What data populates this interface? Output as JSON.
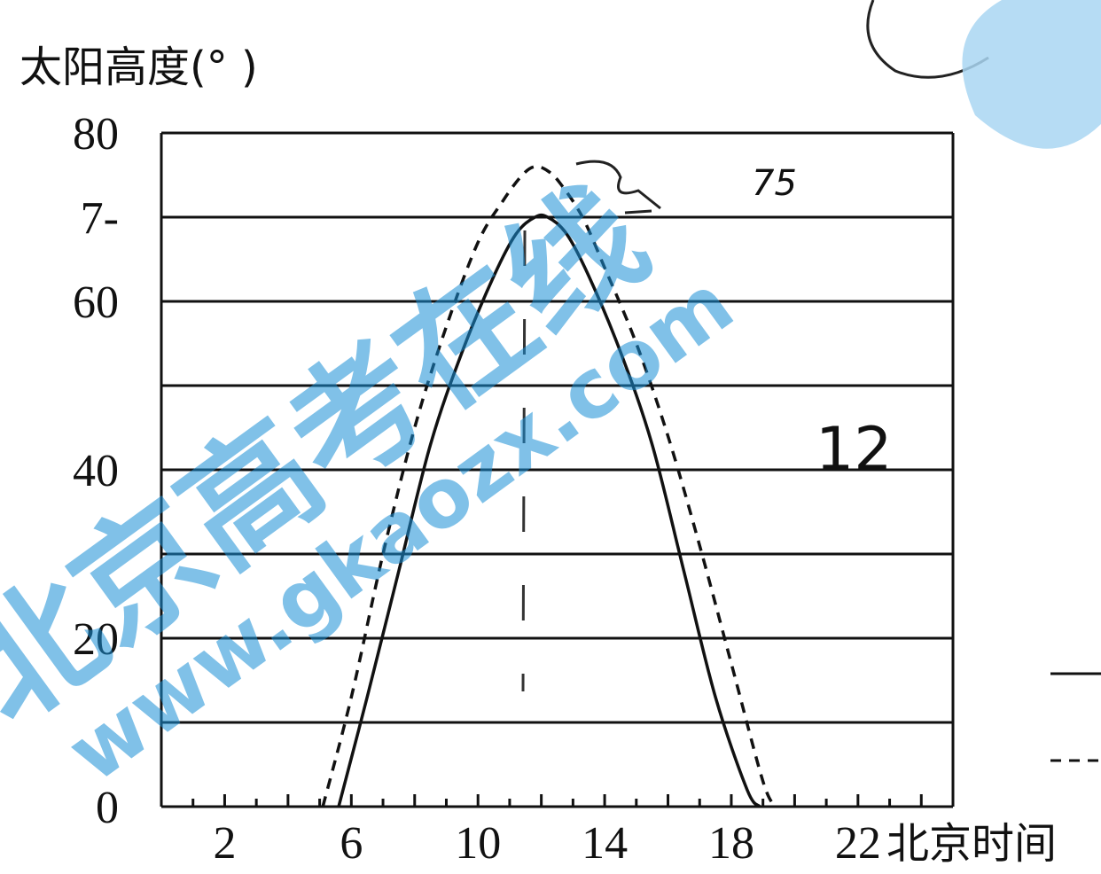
{
  "chart_data": {
    "type": "line",
    "ylabel": "太阳高度(°  )",
    "xlabel": "北京时间",
    "x_ticks": [
      "2",
      "6",
      "10",
      "14",
      "18",
      "22"
    ],
    "x_tick_values": [
      2,
      6,
      10,
      14,
      18,
      22
    ],
    "y_ticks": [
      "0",
      "20",
      "40",
      "60",
      "7-",
      "80"
    ],
    "y_tick_values": [
      0,
      20,
      40,
      60,
      70,
      80
    ],
    "xlim": [
      0,
      25
    ],
    "ylim": [
      0,
      80
    ],
    "grid": true,
    "series": [
      {
        "style": "solid",
        "x": [
          5.6,
          6.5,
          7.5,
          8.5,
          9.5,
          10.5,
          11.2,
          11.8,
          12.2,
          12.8,
          13.5,
          14.5,
          15.5,
          16.5,
          17.5,
          18.5,
          18.9
        ],
        "y": [
          0,
          13,
          28,
          43,
          54,
          63,
          68,
          70,
          70,
          68,
          63,
          54,
          43,
          28,
          13,
          2,
          0
        ]
      },
      {
        "style": "dashed",
        "x": [
          5.1,
          6.0,
          7.0,
          8.0,
          9.0,
          10.0,
          10.8,
          11.4,
          11.8,
          12.2,
          12.6,
          13.3,
          14.0,
          15.0,
          16.0,
          17.0,
          18.0,
          19.0,
          19.4
        ],
        "y": [
          0,
          13,
          30,
          45,
          57,
          67,
          72,
          75,
          76,
          75.5,
          74,
          70,
          64,
          55,
          44,
          31,
          17,
          3,
          0
        ]
      }
    ],
    "annotations": [
      "75",
      "12"
    ]
  },
  "watermark": {
    "text": "北京高考在线",
    "url": "www.gkaozx.com"
  }
}
